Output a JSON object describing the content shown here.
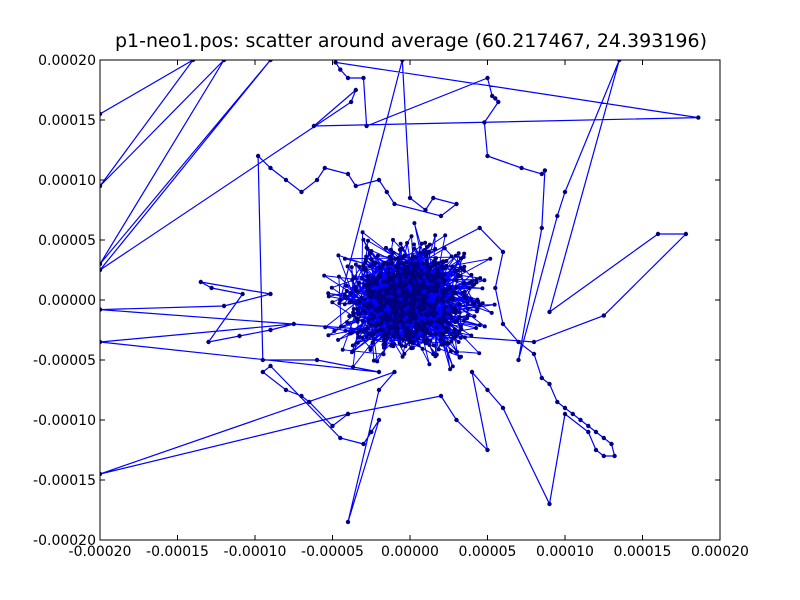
{
  "chart_data": {
    "type": "scatter",
    "title": "p1-neo1.pos: scatter around average (60.217467, 24.393196)",
    "xlabel": "",
    "ylabel": "",
    "xlim": [
      -0.0002,
      0.0002
    ],
    "ylim": [
      -0.0002,
      0.0002
    ],
    "grid": false,
    "legend": "none",
    "x_ticks": [
      "-0.00020",
      "-0.00015",
      "-0.00010",
      "-0.00005",
      "0.00000",
      "0.00005",
      "0.00010",
      "0.00015",
      "0.00020"
    ],
    "y_ticks": [
      "0.00020",
      "0.00015",
      "0.00010",
      "0.00005",
      "0.00000",
      "-0.00005",
      "-0.00010",
      "-0.00015",
      "-0.00020"
    ],
    "line_color": "#0000ff",
    "marker_color": "#000080",
    "dense_cluster": {
      "center": [
        0.0,
        0.0
      ],
      "half_width_x": 6.5e-05,
      "half_width_y": 7e-05
    },
    "series": [
      {
        "values": [
          [
            -0.0002,
            0.000155
          ],
          [
            -0.00014,
            0.0002
          ],
          [
            -0.0002,
            9.5e-05
          ],
          [
            -0.00012,
            0.0002
          ],
          [
            -0.0002,
            3e-05
          ],
          [
            -9e-05,
            0.0002
          ],
          [
            -0.0002,
            2.5e-05
          ],
          [
            -3.8e-05,
            0.000165
          ],
          [
            -3.5e-05,
            0.000175
          ],
          [
            -6.2e-05,
            0.000145
          ],
          [
            0.000186,
            0.000152
          ],
          [
            -4.8e-05,
            0.000198
          ],
          [
            -4.5e-05,
            0.000192
          ],
          [
            -4e-05,
            0.000185
          ],
          [
            -3e-05,
            0.000185
          ],
          [
            -2.8e-05,
            0.000145
          ],
          [
            5e-05,
            0.000185
          ],
          [
            5.3e-05,
            0.00017
          ],
          [
            5.5e-05,
            0.000168
          ],
          [
            5.7e-05,
            0.000165
          ],
          [
            4.8e-05,
            0.000148
          ],
          [
            5e-05,
            0.00012
          ],
          [
            7.2e-05,
            0.00011
          ],
          [
            8.5e-05,
            0.000105
          ],
          [
            8.7e-05,
            0.000108
          ],
          [
            8.5e-05,
            6e-05
          ],
          [
            7e-05,
            -5e-05
          ],
          [
            9.5e-05,
            7e-05
          ],
          [
            0.0001,
            9e-05
          ],
          [
            0.000135,
            0.0002
          ],
          [
            9e-05,
            -1e-05
          ],
          [
            0.00016,
            5.5e-05
          ],
          [
            0.000178,
            5.5e-05
          ],
          [
            0.000125,
            -1.3e-05
          ],
          [
            8e-05,
            -3.5e-05
          ],
          [
            -0.0002,
            -8e-06
          ],
          [
            -0.00012,
            -5e-06
          ],
          [
            -9e-05,
            5e-06
          ],
          [
            -0.000135,
            1.5e-05
          ],
          [
            -0.000128,
            1e-05
          ],
          [
            -0.000108,
            5e-06
          ],
          [
            -0.00013,
            -3.5e-05
          ],
          [
            -0.00011,
            -3e-05
          ],
          [
            -9e-05,
            -2.5e-05
          ],
          [
            -7.5e-05,
            -2e-05
          ],
          [
            -0.0002,
            -3.5e-05
          ],
          [
            -2e-05,
            -6e-05
          ],
          [
            -6e-05,
            -5e-05
          ],
          [
            -9.5e-05,
            -5e-05
          ],
          [
            -9.8e-05,
            0.00012
          ],
          [
            -9e-05,
            0.00011
          ],
          [
            -8e-05,
            0.0001
          ],
          [
            -7e-05,
            9e-05
          ],
          [
            -6e-05,
            0.0001
          ],
          [
            -5.5e-05,
            0.00011
          ],
          [
            -4e-05,
            0.000105
          ],
          [
            -3.5e-05,
            9.5e-05
          ],
          [
            -2e-05,
            0.0001
          ],
          [
            -1.5e-05,
            9e-05
          ],
          [
            -1e-05,
            8e-05
          ],
          [
            2e-05,
            7e-05
          ],
          [
            3e-05,
            8e-05
          ],
          [
            1.5e-05,
            8.5e-05
          ],
          [
            1e-05,
            7.5e-05
          ],
          [
            0.0,
            8.5e-05
          ],
          [
            -5e-06,
            0.0002
          ],
          [
            -4.5e-05,
            0.0
          ],
          [
            4.5e-05,
            6e-05
          ],
          [
            6e-05,
            4e-05
          ],
          [
            5.5e-05,
            1e-05
          ],
          [
            6e-05,
            -2e-05
          ],
          [
            7e-05,
            -3.5e-05
          ],
          [
            8e-05,
            -4.5e-05
          ],
          [
            8.5e-05,
            -6.5e-05
          ],
          [
            9e-05,
            -7e-05
          ],
          [
            9.5e-05,
            -8.5e-05
          ],
          [
            0.0001,
            -9e-05
          ],
          [
            0.000105,
            -9.5e-05
          ],
          [
            0.00011,
            -0.0001
          ],
          [
            0.000115,
            -0.000105
          ],
          [
            0.00012,
            -0.00011
          ],
          [
            0.000125,
            -0.000115
          ],
          [
            0.00013,
            -0.00012
          ],
          [
            0.000132,
            -0.00013
          ],
          [
            0.000125,
            -0.00013
          ],
          [
            0.00012,
            -0.000125
          ],
          [
            0.000115,
            -0.00011
          ],
          [
            0.0001,
            -9.5e-05
          ],
          [
            9e-05,
            -0.00017
          ],
          [
            6e-05,
            -9e-05
          ],
          [
            5e-05,
            -7.5e-05
          ],
          [
            4e-05,
            -6e-05
          ],
          [
            5e-05,
            -0.000125
          ],
          [
            3e-05,
            -0.0001
          ],
          [
            2e-05,
            -8e-05
          ],
          [
            -4e-05,
            -9.5e-05
          ],
          [
            -5e-05,
            -0.000105
          ],
          [
            -6.5e-05,
            -8.5e-05
          ],
          [
            -7e-05,
            -8e-05
          ],
          [
            -8e-05,
            -7.5e-05
          ],
          [
            -9.5e-05,
            -6e-05
          ],
          [
            -9e-05,
            -5.5e-05
          ],
          [
            -4.5e-05,
            -0.000115
          ],
          [
            -3e-05,
            -0.00012
          ],
          [
            -2.5e-05,
            -0.00011
          ],
          [
            -2e-05,
            -0.0001
          ],
          [
            -4e-05,
            -0.000185
          ],
          [
            -2e-05,
            -7.5e-05
          ],
          [
            -1e-05,
            -6e-05
          ],
          [
            -0.0002,
            -0.000145
          ],
          [
            -4e-05,
            -9.5e-05
          ]
        ]
      }
    ]
  }
}
